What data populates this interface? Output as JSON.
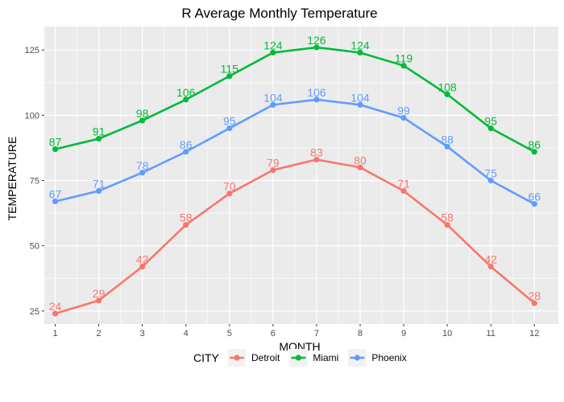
{
  "chart_data": {
    "type": "line",
    "title": "R Average Monthly Temperature",
    "xlabel": "MONTH",
    "ylabel": "TEMPERATURE",
    "x": [
      1,
      2,
      3,
      4,
      5,
      6,
      7,
      8,
      9,
      10,
      11,
      12
    ],
    "xlim": [
      0.75,
      12.55
    ],
    "ylim": [
      20,
      134
    ],
    "yticks": [
      25,
      50,
      75,
      100,
      125
    ],
    "grid": true,
    "legend": {
      "title": "CITY",
      "position": "bottom"
    },
    "series": [
      {
        "name": "Detroit",
        "color": "#F8766D",
        "values": [
          24,
          29,
          42,
          58,
          70,
          79,
          83,
          80,
          71,
          58,
          42,
          28
        ]
      },
      {
        "name": "Miami",
        "color": "#00BA38",
        "values": [
          87,
          91,
          98,
          106,
          115,
          124,
          126,
          124,
          119,
          108,
          95,
          86
        ]
      },
      {
        "name": "Phoenix",
        "color": "#619CFF",
        "values": [
          67,
          71,
          78,
          86,
          95,
          104,
          106,
          104,
          99,
          88,
          75,
          66
        ]
      }
    ]
  }
}
